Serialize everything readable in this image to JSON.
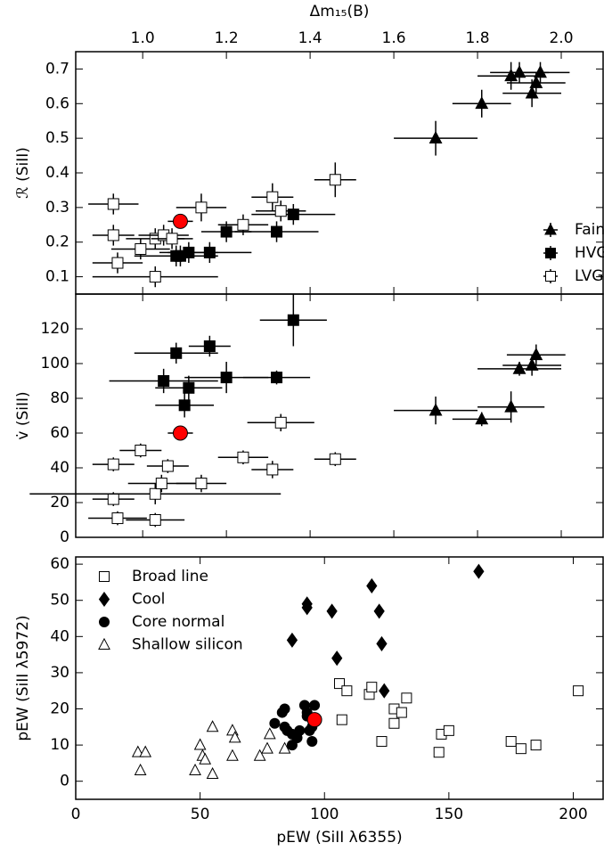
{
  "chart_data": [
    {
      "type": "scatter",
      "xlabel": "Δm₁₅(B)",
      "ylabel": "ℛ (SiII)",
      "xaxis": "top",
      "xlim": [
        0.84,
        2.1
      ],
      "xticks": [
        {
          "value": 1,
          "label": "1.0"
        },
        1.2,
        1.4,
        1.6,
        1.8,
        {
          "value": 2,
          "label": "2.0"
        }
      ],
      "ylim": [
        0.05,
        0.75
      ],
      "yticks": [
        0.1,
        0.2,
        0.3,
        0.4,
        0.5,
        0.6,
        0.7
      ],
      "legend": "lower right",
      "series": [
        {
          "name": "Faint",
          "marker": "triangle",
          "color": "#000000",
          "x": [
            1.7,
            1.81,
            1.88,
            1.9,
            1.93,
            1.94,
            1.95
          ],
          "y": [
            0.5,
            0.6,
            0.68,
            0.69,
            0.63,
            0.66,
            0.69
          ],
          "xerr": [
            0.1,
            0.07,
            0.08,
            0.07,
            0.07,
            0.07,
            0.07
          ],
          "yerr": [
            0.05,
            0.04,
            0.04,
            0.03,
            0.04,
            0.03,
            0.03
          ]
        },
        {
          "name": "HVG",
          "marker": "square",
          "color": "#000000",
          "x": [
            1.2,
            1.08,
            1.09,
            1.11,
            1.16,
            1.32,
            1.36
          ],
          "y": [
            0.23,
            0.16,
            0.16,
            0.17,
            0.17,
            0.23,
            0.28
          ],
          "xerr": [
            0.06,
            0.1,
            0.05,
            0.07,
            0.1,
            0.1,
            0.1
          ],
          "yerr": [
            0.03,
            0.03,
            0.03,
            0.03,
            0.03,
            0.03,
            0.03
          ]
        },
        {
          "name": "LVG",
          "marker": "square",
          "color": "#ffffff",
          "x": [
            0.93,
            0.93,
            0.94,
            0.995,
            1.03,
            1.05,
            1.07,
            1.14,
            1.24,
            1.31,
            1.33,
            1.46,
            1.03
          ],
          "y": [
            0.31,
            0.22,
            0.14,
            0.18,
            0.21,
            0.22,
            0.21,
            0.3,
            0.25,
            0.33,
            0.29,
            0.38,
            0.1
          ],
          "xerr": [
            0.06,
            0.05,
            0.06,
            0.07,
            0.07,
            0.06,
            0.05,
            0.06,
            0.06,
            0.05,
            0.06,
            0.05,
            0.15
          ],
          "yerr": [
            0.03,
            0.03,
            0.03,
            0.03,
            0.03,
            0.03,
            0.03,
            0.04,
            0.03,
            0.04,
            0.03,
            0.05,
            0.03
          ]
        },
        {
          "marker": "circle",
          "color": "#ff0000",
          "x": [
            1.09
          ],
          "y": [
            0.26
          ],
          "xerr": [
            0.03
          ],
          "yerr": [
            0.01
          ]
        }
      ]
    },
    {
      "type": "scatter",
      "ylabel": "v̇ (SiII)",
      "sharex": true,
      "ylim": [
        0,
        140
      ],
      "yticks": [
        0,
        20,
        40,
        60,
        80,
        100,
        120
      ],
      "series": [
        {
          "marker": "triangle",
          "color": "#000000",
          "x": [
            1.7,
            1.81,
            1.88,
            1.9,
            1.93,
            1.94
          ],
          "y": [
            73,
            68,
            75,
            97,
            99,
            105
          ],
          "xerr": [
            0.1,
            0.07,
            0.08,
            0.1,
            0.07,
            0.07
          ],
          "yerr": [
            8,
            4,
            9,
            4,
            6,
            6
          ]
        },
        {
          "marker": "square",
          "color": "#000000",
          "x": [
            1.36,
            1.16,
            1.08,
            1.05,
            1.11,
            1.1,
            1.2,
            1.32
          ],
          "y": [
            125,
            110,
            106,
            90,
            86,
            76,
            92,
            92
          ],
          "xerr": [
            0.08,
            0.05,
            0.1,
            0.13,
            0.08,
            0.07,
            0.1,
            0.08
          ],
          "yerr": [
            15,
            6,
            6,
            7,
            7,
            7,
            9,
            4
          ]
        },
        {
          "marker": "square",
          "color": "#ffffff",
          "x": [
            0.93,
            0.995,
            1.06,
            0.93,
            0.94,
            1.03,
            1.03,
            1.045,
            1.14,
            1.24,
            1.31,
            1.33,
            1.46
          ],
          "y": [
            42,
            50,
            41,
            22,
            11,
            10,
            25,
            31,
            31,
            46,
            39,
            66,
            45
          ],
          "xerr": [
            0.05,
            0.05,
            0.05,
            0.05,
            0.07,
            0.07,
            0.3,
            0.08,
            0.06,
            0.06,
            0.05,
            0.08,
            0.05
          ],
          "yerr": [
            4,
            4,
            4,
            4,
            4,
            4,
            6,
            5,
            5,
            4,
            5,
            5,
            4
          ]
        },
        {
          "marker": "circle",
          "color": "#ff0000",
          "x": [
            1.09
          ],
          "y": [
            60
          ],
          "xerr": [
            0.03
          ],
          "yerr": [
            2
          ]
        }
      ]
    },
    {
      "type": "scatter",
      "xlabel": "pEW (SiII λ6355)",
      "ylabel": "pEW (SiII λ5972)",
      "xaxis": "bottom",
      "xlim": [
        0,
        212
      ],
      "xticks": [
        0,
        50,
        100,
        150,
        200
      ],
      "ylim": [
        -5,
        62
      ],
      "yticks": [
        0,
        10,
        20,
        30,
        40,
        50,
        60
      ],
      "legend": "upper left",
      "series": [
        {
          "name": "Broad line",
          "marker": "square",
          "color": "#ffffff",
          "x": [
            106,
            109,
            118,
            119,
            133,
            128,
            131,
            128,
            107,
            123,
            146,
            147,
            150,
            175,
            179,
            185,
            202
          ],
          "y": [
            27,
            25,
            24,
            26,
            23,
            20,
            19,
            16,
            17,
            11,
            8,
            13,
            14,
            11,
            9,
            10,
            25
          ]
        },
        {
          "name": "Cool",
          "marker": "diamond",
          "color": "#000000",
          "x": [
            162,
            119,
            93,
            93,
            103,
            122,
            87,
            123,
            105,
            124
          ],
          "y": [
            58,
            54,
            49,
            48,
            47,
            47,
            39,
            38,
            34,
            25
          ]
        },
        {
          "name": "Core normal",
          "marker": "circle",
          "color": "#000000",
          "x": [
            80,
            83,
            84,
            84,
            85,
            87,
            87,
            89,
            92,
            93,
            93,
            94,
            95,
            95,
            96,
            90
          ],
          "y": [
            16,
            19,
            20,
            15,
            14,
            10,
            13,
            12,
            21,
            19,
            18,
            14,
            11,
            15,
            21,
            14
          ]
        },
        {
          "name": "Shallow silicon",
          "marker": "triangle",
          "color": "#ffffff",
          "x": [
            25,
            28,
            26,
            48,
            50,
            51,
            55,
            55,
            52,
            63,
            64,
            63,
            74,
            77,
            78,
            84
          ],
          "y": [
            8,
            8,
            3,
            3,
            10,
            7,
            2,
            15,
            6,
            14,
            12,
            7,
            7,
            9,
            13,
            9
          ]
        },
        {
          "marker": "circle",
          "color": "#ff0000",
          "x": [
            96
          ],
          "y": [
            17
          ]
        }
      ]
    }
  ]
}
